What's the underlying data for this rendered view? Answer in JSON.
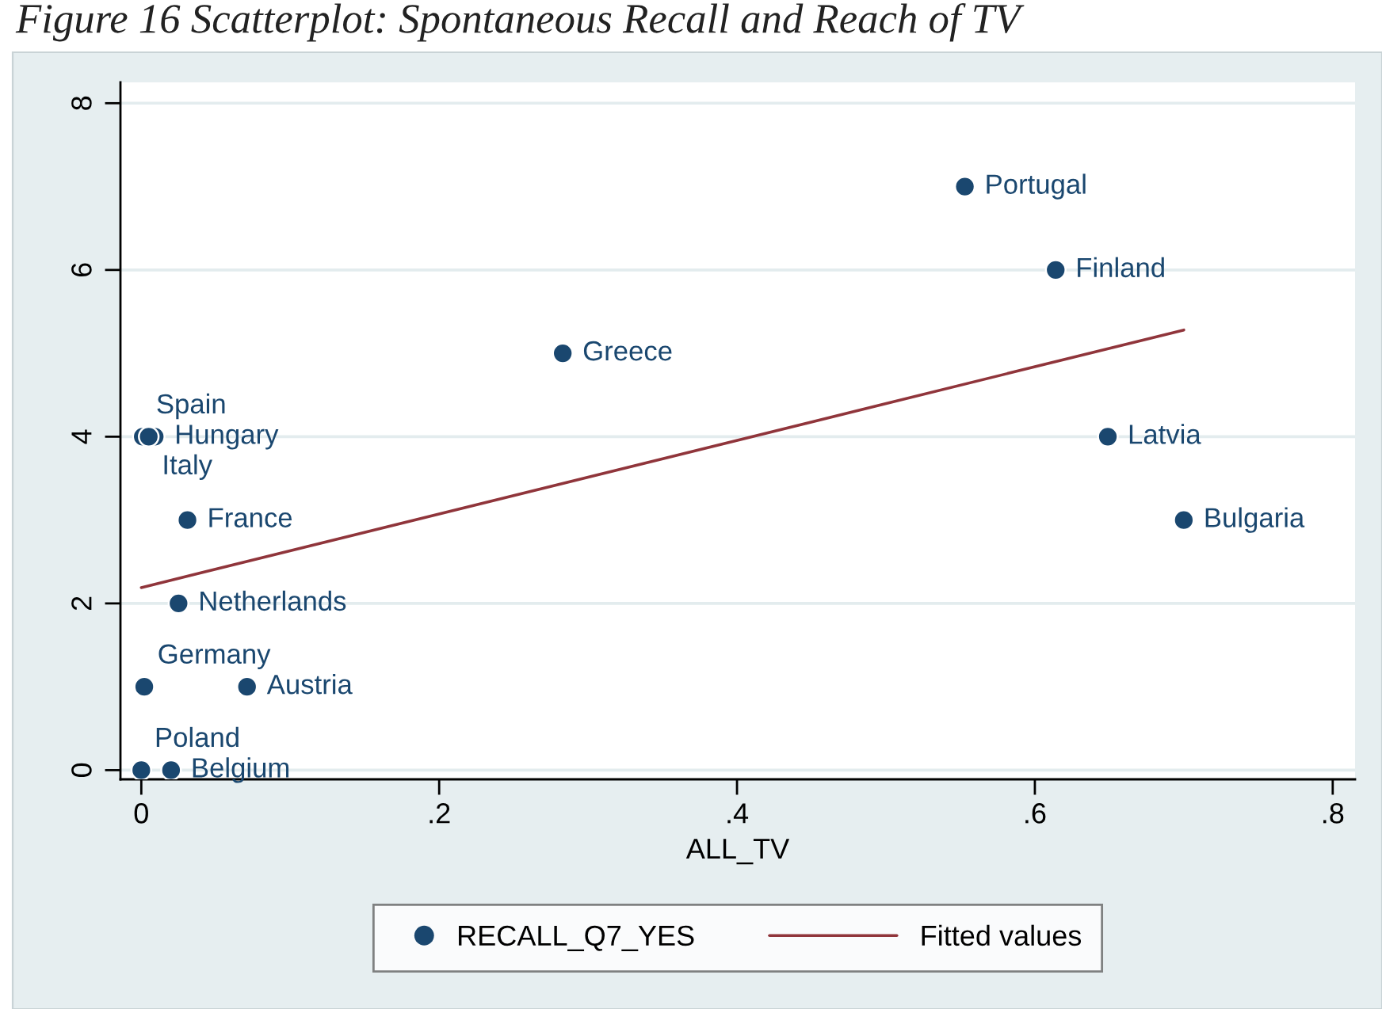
{
  "chart_data": {
    "type": "scatter",
    "title": "Figure 16 Scatterplot: Spontaneous Recall and Reach of TV",
    "xlabel": "ALL_TV",
    "series": [
      {
        "name": "RECALL_Q7_YES",
        "color": "#1a476f",
        "marker": "circle",
        "x": [
          0.553,
          0.614,
          0.283,
          0.649,
          0.7,
          0.001,
          0.005,
          0.009,
          0.031,
          0.025,
          0.002,
          0.071,
          0.0,
          0.02
        ],
        "values": [
          7,
          6,
          5,
          4,
          3,
          4,
          4,
          4,
          3,
          2,
          1,
          1,
          0,
          0
        ]
      },
      {
        "name": "Fitted values",
        "type": "line",
        "color": "#90353b",
        "line_style": "solid",
        "x": [
          0.0,
          0.7
        ],
        "values": [
          2.19,
          5.28
        ]
      }
    ],
    "annotations": [
      {
        "text": "Portugal",
        "x": 0.553,
        "y": 7
      },
      {
        "text": "Finland",
        "x": 0.614,
        "y": 6
      },
      {
        "text": "Greece",
        "x": 0.283,
        "y": 5
      },
      {
        "text": "Latvia",
        "x": 0.649,
        "y": 4
      },
      {
        "text": "Bulgaria",
        "x": 0.7,
        "y": 3
      },
      {
        "text": "Spain",
        "x": 0.001,
        "y": 4
      },
      {
        "text": "Italy",
        "x": 0.005,
        "y": 4
      },
      {
        "text": "Hungary",
        "x": 0.009,
        "y": 4
      },
      {
        "text": "France",
        "x": 0.031,
        "y": 3
      },
      {
        "text": "Netherlands",
        "x": 0.025,
        "y": 2
      },
      {
        "text": "Germany",
        "x": 0.002,
        "y": 1
      },
      {
        "text": "Austria",
        "x": 0.071,
        "y": 1
      },
      {
        "text": "Poland",
        "x": 0.0,
        "y": 0
      },
      {
        "text": "Belgium",
        "x": 0.02,
        "y": 0
      }
    ],
    "xlim": [
      -0.014,
      0.815
    ],
    "ylim": [
      -0.11,
      8.25
    ],
    "xticks": [
      {
        "value": 0,
        "label": "0"
      },
      {
        "value": 0.2,
        "label": ".2"
      },
      {
        "value": 0.4,
        "label": ".4"
      },
      {
        "value": 0.6,
        "label": ".6"
      },
      {
        "value": 0.8,
        "label": ".8"
      }
    ],
    "yticks": [
      0,
      2,
      4,
      6,
      8
    ],
    "grid": "y",
    "legend": "bottom"
  }
}
